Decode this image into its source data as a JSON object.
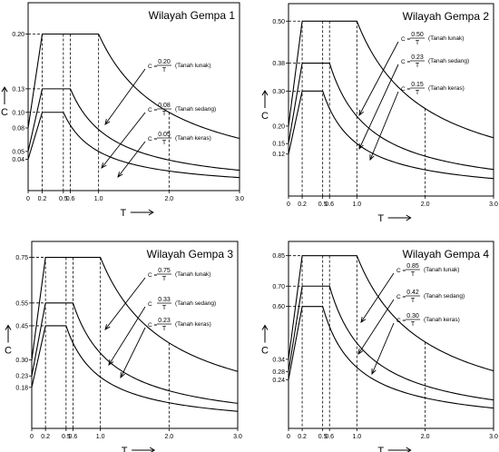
{
  "chart_data": [
    {
      "type": "line",
      "title": "Wilayah Gempa 1",
      "xlabel": "T",
      "ylabel": "C",
      "xlim": [
        0,
        3.0
      ],
      "ylim": [
        0,
        0.24
      ],
      "x_ticks": [
        "0",
        "0.2",
        "0.5",
        "0.6",
        "1.0",
        "2.0",
        "3.0"
      ],
      "y_ticks": [
        "0.20",
        "0.13",
        "0.10",
        "0.08",
        "0.05",
        "0.04"
      ],
      "y_tick_values": [
        0.2,
        0.13,
        0.1,
        0.08,
        0.05,
        0.04
      ],
      "series": [
        {
          "name": "Tanah lunak",
          "start": 0.08,
          "plateau": 0.2,
          "T0": 0.2,
          "Tc": 1.0,
          "coef": "0.20",
          "pre": "C =",
          "den": "T"
        },
        {
          "name": "Tanah sedang",
          "start": 0.05,
          "plateau": 0.13,
          "T0": 0.2,
          "Tc": 0.6,
          "coef": "0.08",
          "pre": "C =",
          "den": "T"
        },
        {
          "name": "Tanah keras",
          "start": 0.04,
          "plateau": 0.1,
          "T0": 0.2,
          "Tc": 0.5,
          "coef": "0.05",
          "pre": "C =",
          "den": "T"
        }
      ]
    },
    {
      "type": "line",
      "title": "Wilayah Gempa 2",
      "xlabel": "T",
      "ylabel": "C",
      "xlim": [
        0,
        3.0
      ],
      "ylim": [
        0,
        0.55
      ],
      "x_ticks": [
        "0",
        "0.2",
        "0.5",
        "0.6",
        "1.0",
        "2.0",
        "3.0"
      ],
      "y_ticks": [
        "0.50",
        "0.38",
        "0.30",
        "0.20",
        "0.15",
        "0.12"
      ],
      "y_tick_values": [
        0.5,
        0.38,
        0.3,
        0.2,
        0.15,
        0.12
      ],
      "series": [
        {
          "name": "Tanah lunak",
          "start": 0.2,
          "plateau": 0.5,
          "T0": 0.2,
          "Tc": 1.0,
          "coef": "0.50",
          "pre": "C =",
          "den": "T"
        },
        {
          "name": "Tanah sedang",
          "start": 0.15,
          "plateau": 0.38,
          "T0": 0.2,
          "Tc": 0.6,
          "coef": "0.23",
          "pre": "C =",
          "den": "T"
        },
        {
          "name": "Tanah keras",
          "start": 0.12,
          "plateau": 0.3,
          "T0": 0.2,
          "Tc": 0.5,
          "coef": "0.15",
          "pre": "C =",
          "den": "T"
        }
      ]
    },
    {
      "type": "line",
      "title": "Wilayah Gempa 3",
      "xlabel": "T",
      "ylabel": "C",
      "xlim": [
        0,
        3.0
      ],
      "ylim": [
        0,
        0.82
      ],
      "x_ticks": [
        "0",
        "0.2",
        "0.5",
        "0.6",
        "1.0",
        "2.0",
        "3.0"
      ],
      "y_ticks": [
        "0.75",
        "0.55",
        "0.45",
        "0.30",
        "0.23",
        "0.18"
      ],
      "y_tick_values": [
        0.75,
        0.55,
        0.45,
        0.3,
        0.23,
        0.18
      ],
      "series": [
        {
          "name": "Tanah lunak",
          "start": 0.3,
          "plateau": 0.75,
          "T0": 0.2,
          "Tc": 1.0,
          "coef": "0.75",
          "pre": "C =",
          "den": "T"
        },
        {
          "name": "Tanah sedang",
          "start": 0.23,
          "plateau": 0.55,
          "T0": 0.2,
          "Tc": 0.6,
          "coef": "0.33",
          "pre": "C",
          "den": "T"
        },
        {
          "name": "Tanah keras",
          "start": 0.18,
          "plateau": 0.45,
          "T0": 0.2,
          "Tc": 0.5,
          "coef": "0.23",
          "pre": "C =",
          "den": "T"
        }
      ]
    },
    {
      "type": "line",
      "title": "Wilayah Gempa 4",
      "xlabel": "T",
      "ylabel": "C",
      "xlim": [
        0,
        3.0
      ],
      "ylim": [
        0,
        0.92
      ],
      "x_ticks": [
        "0",
        "0.2",
        "0.5",
        "0.6",
        "1.0",
        "2.0",
        "3.0"
      ],
      "y_ticks": [
        "0.85",
        "0.70",
        "0.60",
        "0.34",
        "0.28",
        "0.24"
      ],
      "y_tick_values": [
        0.85,
        0.7,
        0.6,
        0.34,
        0.28,
        0.24
      ],
      "series": [
        {
          "name": "Tanah lunak",
          "start": 0.34,
          "plateau": 0.85,
          "T0": 0.2,
          "Tc": 1.0,
          "coef": "0.85",
          "pre": "C =",
          "den": "T"
        },
        {
          "name": "Tanah sedang",
          "start": 0.28,
          "plateau": 0.7,
          "T0": 0.2,
          "Tc": 0.6,
          "coef": "0.42",
          "pre": "C =",
          "den": "T"
        },
        {
          "name": "Tanah keras",
          "start": 0.24,
          "plateau": 0.6,
          "T0": 0.2,
          "Tc": 0.5,
          "coef": "0.30",
          "pre": "C =",
          "den": "T"
        }
      ]
    }
  ]
}
